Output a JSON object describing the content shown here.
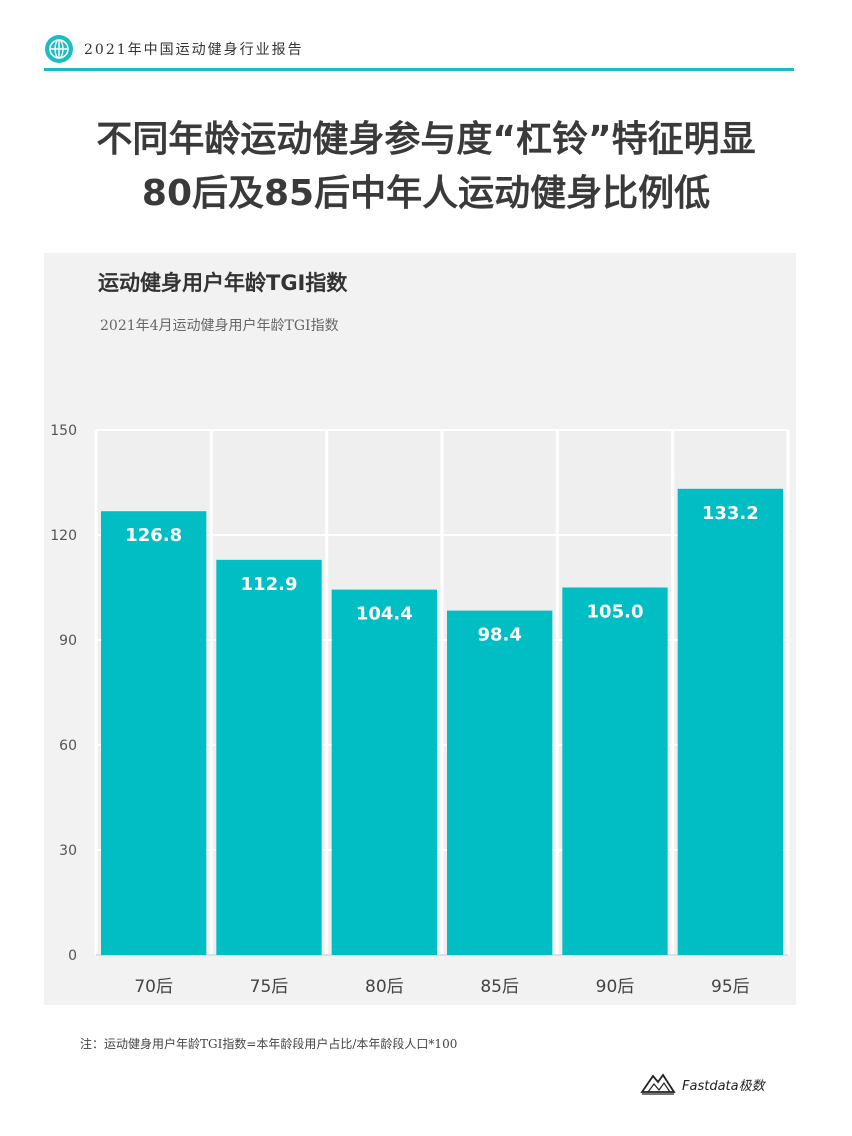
{
  "header": {
    "text": "2021年中国运动健身行业报告",
    "icon": "globe-icon"
  },
  "headline": {
    "line1": "不同年龄运动健身参与度“杠铃”特征明显",
    "line2": "80后及85后中年人运动健身比例低"
  },
  "chart_data": {
    "type": "bar",
    "title": "运动健身用户年龄TGI指数",
    "subtitle": "2021年4月运动健身用户年龄TGI指数",
    "categories": [
      "70后",
      "75后",
      "80后",
      "85后",
      "90后",
      "95后"
    ],
    "values": [
      126.8,
      112.9,
      104.4,
      98.4,
      105.0,
      133.2
    ],
    "value_labels": [
      "126.8",
      "112.9",
      "104.4",
      "98.4",
      "105.0",
      "133.2"
    ],
    "ylim": [
      0,
      150
    ],
    "yticks": [
      0,
      30,
      60,
      90,
      120,
      150
    ],
    "grid": true,
    "bar_color": "#00bec4"
  },
  "footnote": "注：运动健身用户年龄TGI指数=本年龄段用户占比/本年龄段人口*100",
  "logo": {
    "text": "Fastdata极数",
    "icon": "mountain-logo-icon"
  }
}
